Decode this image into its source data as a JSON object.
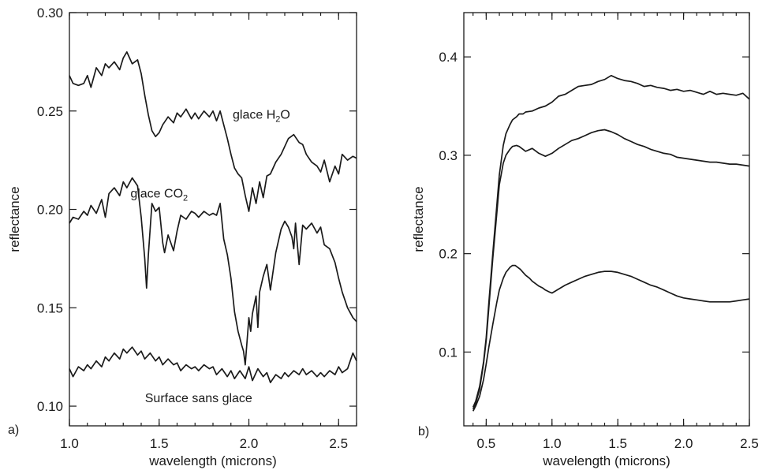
{
  "chart_data": [
    {
      "type": "line",
      "panel_label": "a)",
      "xlabel": "wavelength (microns)",
      "ylabel": "reflectance",
      "xlim": [
        1.0,
        2.6
      ],
      "ylim": [
        0.09,
        0.3
      ],
      "xticks": [
        "1.0",
        "1.5",
        "2.0",
        "2.5"
      ],
      "yticks": [
        "0.10",
        "0.15",
        "0.20",
        "0.25",
        "0.30"
      ],
      "grid": false,
      "annotations": [
        {
          "name": "annotation-h2o-ice",
          "text": "glace H",
          "sub": "2",
          "suffix": "O",
          "x": 2.07,
          "y": 0.246
        },
        {
          "name": "annotation-co2-ice",
          "text": "glace CO",
          "sub": "2",
          "suffix": "",
          "x": 1.5,
          "y": 0.206
        },
        {
          "name": "annotation-no-ice",
          "text": "Surface sans glace",
          "sub": "",
          "suffix": "",
          "x": 1.72,
          "y": 0.102
        }
      ],
      "series": [
        {
          "x": [
            1.0,
            1.02,
            1.05,
            1.08,
            1.1,
            1.12,
            1.15,
            1.18,
            1.2,
            1.22,
            1.25,
            1.28,
            1.3,
            1.32,
            1.35,
            1.38,
            1.4,
            1.42,
            1.44,
            1.46,
            1.48,
            1.5,
            1.52,
            1.55,
            1.58,
            1.6,
            1.62,
            1.65,
            1.68,
            1.7,
            1.72,
            1.75,
            1.78,
            1.8,
            1.82,
            1.84,
            1.86,
            1.88,
            1.9,
            1.92,
            1.94,
            1.96,
            1.98,
            2.0,
            2.02,
            2.04,
            2.06,
            2.08,
            2.1,
            2.12,
            2.15,
            2.18,
            2.2,
            2.22,
            2.25,
            2.28,
            2.3,
            2.32,
            2.35,
            2.38,
            2.4,
            2.42,
            2.45,
            2.48,
            2.5,
            2.52,
            2.55,
            2.58,
            2.6
          ],
          "y": [
            0.268,
            0.264,
            0.263,
            0.264,
            0.268,
            0.262,
            0.272,
            0.268,
            0.274,
            0.272,
            0.275,
            0.271,
            0.277,
            0.28,
            0.274,
            0.276,
            0.269,
            0.258,
            0.248,
            0.24,
            0.237,
            0.239,
            0.243,
            0.247,
            0.244,
            0.249,
            0.247,
            0.251,
            0.246,
            0.249,
            0.246,
            0.25,
            0.247,
            0.25,
            0.245,
            0.25,
            0.243,
            0.236,
            0.228,
            0.221,
            0.218,
            0.216,
            0.207,
            0.199,
            0.211,
            0.203,
            0.214,
            0.206,
            0.217,
            0.218,
            0.224,
            0.228,
            0.232,
            0.236,
            0.238,
            0.234,
            0.233,
            0.228,
            0.224,
            0.222,
            0.219,
            0.225,
            0.214,
            0.222,
            0.218,
            0.228,
            0.225,
            0.227,
            0.226
          ]
        },
        {
          "x": [
            1.0,
            1.02,
            1.05,
            1.08,
            1.1,
            1.12,
            1.15,
            1.18,
            1.2,
            1.22,
            1.25,
            1.28,
            1.3,
            1.32,
            1.35,
            1.38,
            1.4,
            1.42,
            1.43,
            1.44,
            1.46,
            1.48,
            1.5,
            1.52,
            1.53,
            1.55,
            1.58,
            1.6,
            1.62,
            1.65,
            1.68,
            1.7,
            1.72,
            1.75,
            1.78,
            1.8,
            1.82,
            1.84,
            1.86,
            1.88,
            1.9,
            1.92,
            1.94,
            1.96,
            1.97,
            1.98,
            2.0,
            2.01,
            2.02,
            2.04,
            2.05,
            2.06,
            2.08,
            2.1,
            2.12,
            2.15,
            2.18,
            2.2,
            2.22,
            2.24,
            2.25,
            2.26,
            2.28,
            2.3,
            2.32,
            2.35,
            2.38,
            2.4,
            2.42,
            2.45,
            2.48,
            2.5,
            2.52,
            2.55,
            2.58,
            2.6
          ],
          "y": [
            0.193,
            0.196,
            0.195,
            0.199,
            0.197,
            0.202,
            0.198,
            0.205,
            0.196,
            0.208,
            0.211,
            0.207,
            0.214,
            0.211,
            0.216,
            0.212,
            0.196,
            0.175,
            0.16,
            0.177,
            0.203,
            0.199,
            0.201,
            0.183,
            0.178,
            0.187,
            0.179,
            0.189,
            0.197,
            0.195,
            0.199,
            0.198,
            0.196,
            0.199,
            0.197,
            0.198,
            0.197,
            0.203,
            0.185,
            0.177,
            0.165,
            0.148,
            0.138,
            0.131,
            0.128,
            0.121,
            0.145,
            0.138,
            0.147,
            0.156,
            0.14,
            0.158,
            0.166,
            0.172,
            0.159,
            0.178,
            0.19,
            0.194,
            0.191,
            0.186,
            0.18,
            0.193,
            0.172,
            0.192,
            0.19,
            0.193,
            0.188,
            0.191,
            0.182,
            0.18,
            0.173,
            0.165,
            0.158,
            0.15,
            0.145,
            0.143
          ]
        },
        {
          "x": [
            1.0,
            1.02,
            1.05,
            1.08,
            1.1,
            1.12,
            1.15,
            1.18,
            1.2,
            1.22,
            1.25,
            1.28,
            1.3,
            1.32,
            1.35,
            1.38,
            1.4,
            1.42,
            1.45,
            1.48,
            1.5,
            1.52,
            1.55,
            1.58,
            1.6,
            1.62,
            1.65,
            1.68,
            1.7,
            1.72,
            1.75,
            1.78,
            1.8,
            1.82,
            1.85,
            1.88,
            1.9,
            1.92,
            1.95,
            1.98,
            2.0,
            2.02,
            2.05,
            2.08,
            2.1,
            2.12,
            2.15,
            2.18,
            2.2,
            2.22,
            2.25,
            2.28,
            2.3,
            2.32,
            2.35,
            2.38,
            2.4,
            2.42,
            2.45,
            2.48,
            2.5,
            2.52,
            2.55,
            2.58,
            2.6
          ],
          "y": [
            0.119,
            0.115,
            0.12,
            0.118,
            0.121,
            0.119,
            0.123,
            0.12,
            0.125,
            0.123,
            0.127,
            0.124,
            0.129,
            0.127,
            0.13,
            0.126,
            0.128,
            0.124,
            0.127,
            0.123,
            0.125,
            0.121,
            0.124,
            0.121,
            0.122,
            0.118,
            0.121,
            0.119,
            0.12,
            0.118,
            0.121,
            0.119,
            0.12,
            0.116,
            0.119,
            0.115,
            0.118,
            0.114,
            0.118,
            0.114,
            0.12,
            0.113,
            0.119,
            0.115,
            0.117,
            0.112,
            0.116,
            0.114,
            0.117,
            0.115,
            0.118,
            0.116,
            0.119,
            0.116,
            0.118,
            0.115,
            0.117,
            0.115,
            0.118,
            0.116,
            0.12,
            0.117,
            0.119,
            0.127,
            0.123
          ]
        }
      ]
    },
    {
      "type": "line",
      "panel_label": "b)",
      "xlabel": "wavelength (microns)",
      "ylabel": "reflectance",
      "xlim": [
        0.33,
        2.5
      ],
      "ylim": [
        0.025,
        0.445
      ],
      "xticks": [
        "0.5",
        "1.0",
        "1.5",
        "2.0",
        "2.5"
      ],
      "yticks": [
        "0.1",
        "0.2",
        "0.3",
        "0.4"
      ],
      "grid": false,
      "series": [
        {
          "x": [
            0.4,
            0.42,
            0.45,
            0.48,
            0.5,
            0.52,
            0.55,
            0.58,
            0.6,
            0.63,
            0.65,
            0.68,
            0.7,
            0.73,
            0.75,
            0.78,
            0.8,
            0.85,
            0.9,
            0.95,
            1.0,
            1.05,
            1.1,
            1.15,
            1.2,
            1.25,
            1.3,
            1.35,
            1.4,
            1.45,
            1.5,
            1.55,
            1.6,
            1.65,
            1.7,
            1.75,
            1.8,
            1.85,
            1.9,
            1.95,
            2.0,
            2.05,
            2.1,
            2.15,
            2.2,
            2.25,
            2.3,
            2.35,
            2.4,
            2.45,
            2.5
          ],
          "y": [
            0.044,
            0.05,
            0.065,
            0.09,
            0.115,
            0.15,
            0.2,
            0.248,
            0.28,
            0.31,
            0.322,
            0.331,
            0.336,
            0.339,
            0.342,
            0.342,
            0.344,
            0.345,
            0.348,
            0.35,
            0.354,
            0.36,
            0.362,
            0.366,
            0.37,
            0.371,
            0.372,
            0.375,
            0.377,
            0.381,
            0.378,
            0.376,
            0.375,
            0.373,
            0.37,
            0.371,
            0.369,
            0.368,
            0.366,
            0.367,
            0.365,
            0.366,
            0.364,
            0.362,
            0.365,
            0.362,
            0.363,
            0.362,
            0.361,
            0.363,
            0.357
          ]
        },
        {
          "x": [
            0.4,
            0.42,
            0.45,
            0.48,
            0.5,
            0.52,
            0.55,
            0.58,
            0.6,
            0.63,
            0.65,
            0.68,
            0.7,
            0.73,
            0.75,
            0.78,
            0.8,
            0.85,
            0.9,
            0.95,
            1.0,
            1.05,
            1.1,
            1.15,
            1.2,
            1.25,
            1.3,
            1.35,
            1.4,
            1.45,
            1.5,
            1.55,
            1.6,
            1.65,
            1.7,
            1.75,
            1.8,
            1.85,
            1.9,
            1.95,
            2.0,
            2.05,
            2.1,
            2.15,
            2.2,
            2.25,
            2.3,
            2.35,
            2.4,
            2.45,
            2.5
          ],
          "y": [
            0.042,
            0.048,
            0.062,
            0.088,
            0.112,
            0.145,
            0.195,
            0.24,
            0.27,
            0.292,
            0.3,
            0.306,
            0.309,
            0.31,
            0.309,
            0.306,
            0.304,
            0.307,
            0.302,
            0.299,
            0.302,
            0.307,
            0.311,
            0.315,
            0.317,
            0.32,
            0.323,
            0.325,
            0.326,
            0.324,
            0.321,
            0.317,
            0.314,
            0.311,
            0.309,
            0.306,
            0.304,
            0.302,
            0.301,
            0.298,
            0.297,
            0.296,
            0.295,
            0.294,
            0.293,
            0.293,
            0.292,
            0.291,
            0.291,
            0.29,
            0.289
          ]
        },
        {
          "x": [
            0.4,
            0.42,
            0.45,
            0.48,
            0.5,
            0.52,
            0.55,
            0.58,
            0.6,
            0.63,
            0.65,
            0.68,
            0.7,
            0.72,
            0.74,
            0.76,
            0.78,
            0.8,
            0.83,
            0.85,
            0.88,
            0.9,
            0.93,
            0.95,
            0.98,
            1.0,
            1.05,
            1.1,
            1.15,
            1.2,
            1.25,
            1.3,
            1.35,
            1.4,
            1.45,
            1.5,
            1.55,
            1.6,
            1.65,
            1.7,
            1.75,
            1.8,
            1.85,
            1.9,
            1.95,
            2.0,
            2.05,
            2.1,
            2.15,
            2.2,
            2.25,
            2.3,
            2.35,
            2.4,
            2.45,
            2.5
          ],
          "y": [
            0.04,
            0.045,
            0.055,
            0.072,
            0.088,
            0.105,
            0.128,
            0.15,
            0.163,
            0.175,
            0.181,
            0.186,
            0.188,
            0.188,
            0.186,
            0.184,
            0.181,
            0.178,
            0.175,
            0.172,
            0.169,
            0.167,
            0.165,
            0.163,
            0.161,
            0.16,
            0.164,
            0.168,
            0.171,
            0.174,
            0.177,
            0.179,
            0.181,
            0.182,
            0.182,
            0.181,
            0.179,
            0.177,
            0.174,
            0.171,
            0.168,
            0.166,
            0.163,
            0.16,
            0.157,
            0.155,
            0.154,
            0.153,
            0.152,
            0.151,
            0.151,
            0.151,
            0.151,
            0.152,
            0.153,
            0.154
          ]
        }
      ]
    }
  ]
}
